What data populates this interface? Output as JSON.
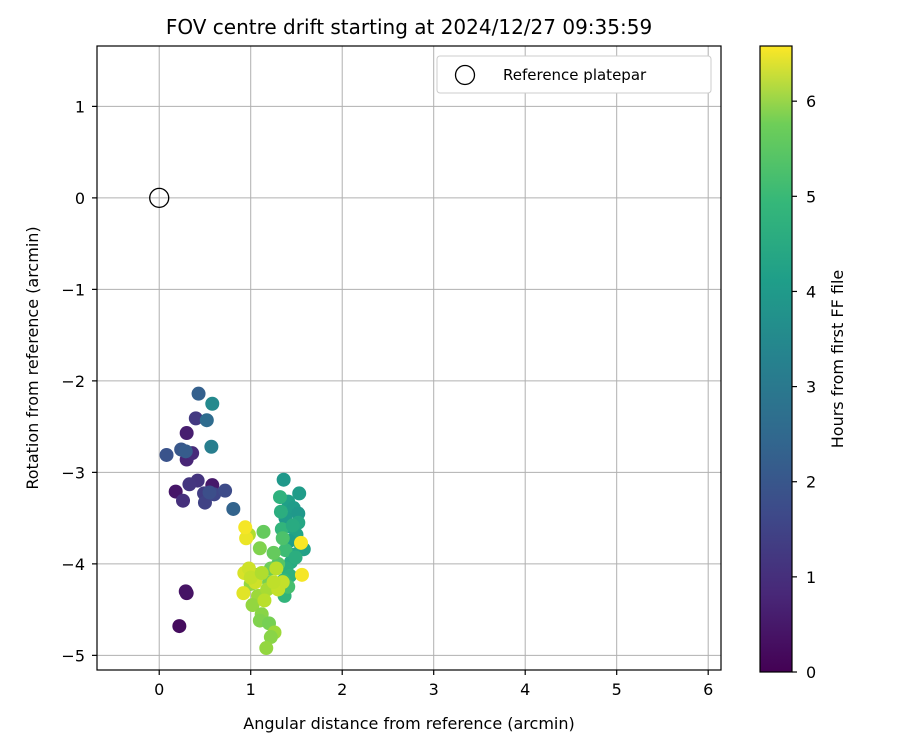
{
  "chart_data": {
    "type": "scatter",
    "title": "FOV centre drift starting at 2024/12/27 09:35:59",
    "xlabel": "Angular distance from reference (arcmin)",
    "ylabel": "Rotation from reference (arcmin)",
    "xlim": [
      -0.68,
      6.14
    ],
    "ylim": [
      -5.16,
      1.66
    ],
    "xticks": [
      0,
      1,
      2,
      3,
      4,
      5,
      6
    ],
    "yticks": [
      1,
      0,
      -1,
      -2,
      -3,
      -4,
      -5
    ],
    "xtick_labels": [
      "0",
      "1",
      "2",
      "3",
      "4",
      "5",
      "6"
    ],
    "ytick_labels": [
      "1",
      "0",
      "−1",
      "−2",
      "−3",
      "−4",
      "−5"
    ],
    "grid": true,
    "legend": {
      "position": "top-right",
      "entries": [
        {
          "label": "Reference platepar",
          "marker": "open-circle"
        }
      ]
    },
    "reference_point": {
      "x": 0,
      "y": 0
    },
    "colorbar": {
      "label": "Hours from first FF file",
      "range": [
        0,
        6.58
      ],
      "ticks": [
        0,
        1,
        2,
        3,
        4,
        5,
        6
      ],
      "tick_labels": [
        "0",
        "1",
        "2",
        "3",
        "4",
        "5",
        "6"
      ],
      "colormap": "viridis"
    },
    "series": [
      {
        "points": [
          [
            0.22,
            -4.68,
            0.2
          ],
          [
            0.3,
            -4.32,
            0.3
          ],
          [
            0.29,
            -4.3,
            0.35
          ],
          [
            0.18,
            -3.21,
            0.4
          ],
          [
            0.58,
            -3.14,
            0.45
          ],
          [
            0.3,
            -2.57,
            0.55
          ],
          [
            0.3,
            -2.86,
            0.7
          ],
          [
            0.36,
            -2.79,
            0.8
          ],
          [
            0.26,
            -3.31,
            0.9
          ],
          [
            0.42,
            -3.09,
            1.0
          ],
          [
            0.33,
            -3.13,
            1.05
          ],
          [
            0.4,
            -2.41,
            1.1
          ],
          [
            0.49,
            -3.23,
            1.2
          ],
          [
            0.5,
            -3.33,
            1.3
          ],
          [
            0.6,
            -3.24,
            1.4
          ],
          [
            0.72,
            -3.2,
            1.5
          ],
          [
            0.55,
            -3.22,
            1.6
          ],
          [
            0.08,
            -2.81,
            1.7
          ],
          [
            0.24,
            -2.75,
            1.8
          ],
          [
            0.29,
            -2.77,
            1.9
          ],
          [
            0.43,
            -2.14,
            2.0
          ],
          [
            0.81,
            -3.4,
            2.1
          ],
          [
            0.52,
            -2.43,
            2.3
          ],
          [
            0.57,
            -2.72,
            2.8
          ],
          [
            0.58,
            -2.25,
            3.1
          ],
          [
            1.36,
            -3.08,
            3.5
          ],
          [
            1.53,
            -3.23,
            3.6
          ],
          [
            1.41,
            -3.32,
            3.7
          ],
          [
            1.47,
            -3.39,
            3.6
          ],
          [
            1.52,
            -3.45,
            3.5
          ],
          [
            1.38,
            -3.5,
            3.55
          ],
          [
            1.45,
            -3.6,
            3.7
          ],
          [
            1.5,
            -3.68,
            3.8
          ],
          [
            1.42,
            -3.75,
            3.65
          ],
          [
            1.55,
            -3.8,
            3.9
          ],
          [
            1.58,
            -3.84,
            3.75
          ],
          [
            1.47,
            -3.9,
            3.85
          ],
          [
            1.44,
            -3.98,
            4.0
          ],
          [
            1.39,
            -4.05,
            4.1
          ],
          [
            1.43,
            -4.13,
            4.2
          ],
          [
            1.37,
            -4.35,
            4.3
          ],
          [
            1.32,
            -3.27,
            4.2
          ],
          [
            1.33,
            -3.43,
            4.1
          ],
          [
            1.34,
            -3.62,
            4.3
          ],
          [
            1.38,
            -3.85,
            4.5
          ],
          [
            1.36,
            -4.18,
            4.4
          ],
          [
            1.41,
            -4.25,
            4.6
          ],
          [
            1.52,
            -3.55,
            3.9
          ],
          [
            1.35,
            -3.72,
            4.7
          ],
          [
            1.46,
            -3.58,
            4.0
          ],
          [
            1.49,
            -3.93,
            4.1
          ],
          [
            1.3,
            -4.0,
            4.8
          ],
          [
            1.25,
            -3.88,
            5.0
          ],
          [
            1.22,
            -4.05,
            5.1
          ],
          [
            1.2,
            -4.2,
            5.2
          ],
          [
            1.14,
            -3.65,
            5.0
          ],
          [
            1.1,
            -3.83,
            5.3
          ],
          [
            1.05,
            -4.12,
            5.4
          ],
          [
            1.0,
            -4.22,
            5.5
          ],
          [
            1.08,
            -4.35,
            5.6
          ],
          [
            1.02,
            -4.45,
            5.5
          ],
          [
            1.12,
            -4.55,
            5.4
          ],
          [
            1.1,
            -4.62,
            5.3
          ],
          [
            1.2,
            -4.65,
            5.2
          ],
          [
            1.26,
            -4.75,
            5.6
          ],
          [
            1.22,
            -4.8,
            5.4
          ],
          [
            1.17,
            -4.92,
            5.5
          ],
          [
            0.98,
            -3.68,
            5.8
          ],
          [
            1.18,
            -4.28,
            5.7
          ],
          [
            1.3,
            -4.28,
            6.0
          ],
          [
            0.95,
            -3.72,
            6.4
          ],
          [
            0.94,
            -3.6,
            6.5
          ],
          [
            0.93,
            -4.1,
            6.2
          ],
          [
            0.98,
            -4.05,
            6.1
          ],
          [
            0.92,
            -4.32,
            6.3
          ],
          [
            1.05,
            -4.2,
            6.1
          ],
          [
            1.0,
            -4.15,
            6.0
          ],
          [
            1.15,
            -4.4,
            5.9
          ],
          [
            1.12,
            -4.1,
            5.8
          ],
          [
            1.28,
            -4.05,
            5.9
          ],
          [
            1.55,
            -3.77,
            6.55
          ],
          [
            1.56,
            -4.12,
            6.5
          ],
          [
            1.35,
            -4.2,
            6.0
          ],
          [
            1.25,
            -4.2,
            5.95
          ]
        ]
      }
    ]
  }
}
